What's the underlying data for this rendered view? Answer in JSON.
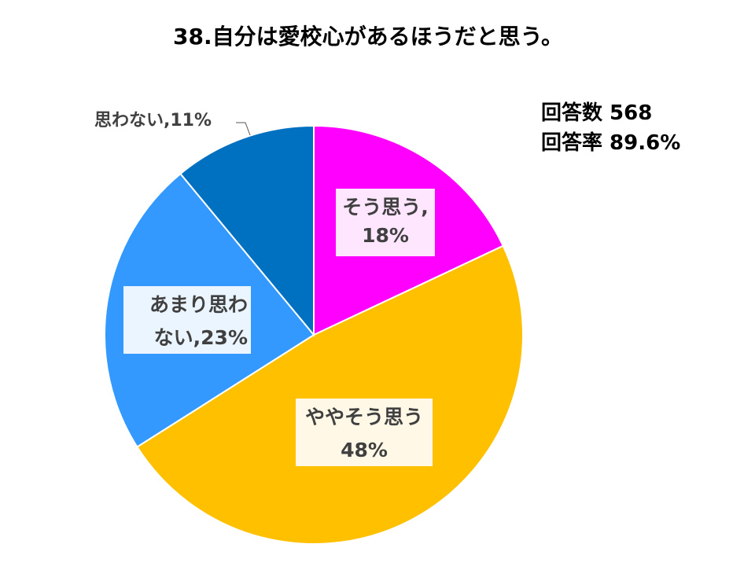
{
  "header": {
    "title": "38.自分は愛校心があるほうだと思う。"
  },
  "stats": {
    "responses": "回答数 568",
    "response_rate": "回答率 89.6%"
  },
  "chart_data": {
    "type": "pie",
    "title": "38.自分は愛校心があるほうだと思う。",
    "slices": [
      {
        "label": "そう思う",
        "value": 18,
        "color": "#FF00FF",
        "label_lines": [
          "そう思う,",
          "18%"
        ]
      },
      {
        "label": "ややそう思う",
        "value": 48,
        "color": "#FFC000",
        "label_lines": [
          "ややそう思う",
          "48%"
        ]
      },
      {
        "label": "あまり思わない",
        "value": 23,
        "color": "#3399FF",
        "label_lines": [
          "あまり思わ",
          "ない,23%"
        ]
      },
      {
        "label": "思わない",
        "value": 11,
        "color": "#0070C0",
        "label_lines": [
          "思わない,11%"
        ]
      }
    ],
    "label_box_colors": [
      "#FFE6FF",
      "#FFF8E6",
      "#EBF5FF",
      "#FFFFFF"
    ]
  }
}
